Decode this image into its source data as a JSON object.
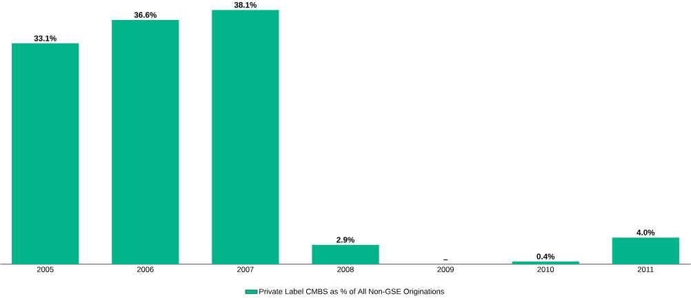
{
  "chart_data": {
    "type": "bar",
    "categories": [
      "2005",
      "2006",
      "2007",
      "2008",
      "2009",
      "2010",
      "2011"
    ],
    "series": [
      {
        "name": "Private Label CMBS as % of All Non-GSE Originations",
        "color": "#00b388",
        "values": [
          33.1,
          36.6,
          38.1,
          2.9,
          0,
          0.4,
          4.0
        ],
        "value_labels": [
          "33.1%",
          "36.6%",
          "38.1%",
          "2.9%",
          "–",
          "0.4%",
          "4.0%"
        ]
      }
    ],
    "legend": "bottom"
  }
}
